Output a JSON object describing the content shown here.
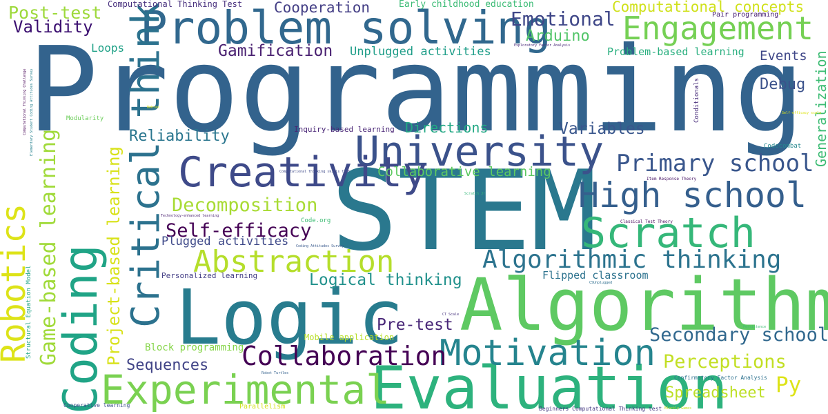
{
  "words": [
    {
      "text": "Programming",
      "color": "#33638d"
    },
    {
      "text": "STEM",
      "color": "#2a788e"
    },
    {
      "text": "Algorithm",
      "color": "#5ec962"
    },
    {
      "text": "Logic",
      "color": "#287c8e"
    },
    {
      "text": "Evaluation",
      "color": "#2db27d"
    },
    {
      "text": "Problem solving",
      "color": "#31688e"
    },
    {
      "text": "University",
      "color": "#3b528b"
    },
    {
      "text": "Creativity",
      "color": "#3e4a89"
    },
    {
      "text": "Critical thinking",
      "color": "#2c728e"
    },
    {
      "text": "Coding",
      "color": "#20a486"
    },
    {
      "text": "Robotics",
      "color": "#dde318"
    },
    {
      "text": "Scratch",
      "color": "#35b779"
    },
    {
      "text": "High school",
      "color": "#355f8d"
    },
    {
      "text": "Experimental",
      "color": "#7ad151"
    },
    {
      "text": "Motivation",
      "color": "#25848e"
    },
    {
      "text": "Engagement",
      "color": "#75d054"
    },
    {
      "text": "Collaboration",
      "color": "#440154"
    },
    {
      "text": "Abstraction",
      "color": "#b5de2b"
    },
    {
      "text": "Game-based learning",
      "color": "#a0da39"
    },
    {
      "text": "Primary school",
      "color": "#39568c"
    },
    {
      "text": "Algorithmic thinking",
      "color": "#2c738e"
    },
    {
      "text": "Project-based learning",
      "color": "#d8e219"
    },
    {
      "text": "Decomposition",
      "color": "#a8db34"
    },
    {
      "text": "Secondary school",
      "color": "#31688e"
    },
    {
      "text": "Emotional",
      "color": "#3f4788"
    },
    {
      "text": "Self-efficacy",
      "color": "#440154"
    },
    {
      "text": "Perceptions",
      "color": "#c2df23"
    },
    {
      "text": "Logical thinking",
      "color": "#21918c"
    },
    {
      "text": "Computational concepts",
      "color": "#d0e11c"
    },
    {
      "text": "Post-test",
      "color": "#9dd93b"
    },
    {
      "text": "Validity",
      "color": "#3b0f70"
    },
    {
      "text": "Pre-test",
      "color": "#482677"
    },
    {
      "text": "Spreadsheet",
      "color": "#bddf26"
    },
    {
      "text": "Variables",
      "color": "#39568c"
    },
    {
      "text": "Reliability",
      "color": "#2a768e"
    },
    {
      "text": "Gamification",
      "color": "#481f70"
    },
    {
      "text": "Cooperation",
      "color": "#433e85"
    },
    {
      "text": "Arduino",
      "color": "#52c569"
    },
    {
      "text": "Generalization",
      "color": "#3dbc74"
    },
    {
      "text": "Sequences",
      "color": "#414487"
    },
    {
      "text": "Collaborative learning",
      "color": "#5ec962"
    },
    {
      "text": "Directions",
      "color": "#22a884"
    },
    {
      "text": "Plugged activities",
      "color": "#3e4989"
    },
    {
      "text": "Unplugged activities",
      "color": "#1f9e89"
    },
    {
      "text": "Debug",
      "color": "#3b528b"
    },
    {
      "text": "Events",
      "color": "#3f4788"
    },
    {
      "text": "Loops",
      "color": "#1fa187"
    },
    {
      "text": "Py",
      "color": "#dde318"
    },
    {
      "text": "Problem-based learning",
      "color": "#29af7f"
    },
    {
      "text": "Flipped classroom",
      "color": "#2c728e"
    },
    {
      "text": "Block programming",
      "color": "#86d549"
    },
    {
      "text": "Early childhood education",
      "color": "#3bbb75"
    },
    {
      "text": "Computational Thinking Test",
      "color": "#472f7d"
    },
    {
      "text": "Inquiry-based learning",
      "color": "#482475"
    },
    {
      "text": "Mobile application",
      "color": "#b8de29"
    },
    {
      "text": "Personalized learning",
      "color": "#433e85"
    },
    {
      "text": "Structural Equation Model",
      "color": "#20a486"
    },
    {
      "text": "Conditionals",
      "color": "#472c7a"
    },
    {
      "text": "Pair programming",
      "color": "#482173"
    },
    {
      "text": "Codecombat",
      "color": "#24878e"
    },
    {
      "text": "Parallelism",
      "color": "#d2e21b"
    },
    {
      "text": "Cooperative learning",
      "color": "#3b528b"
    },
    {
      "text": "Beginners Computational Thinking test",
      "color": "#443983"
    },
    {
      "text": "Confirmatory Factor Analysis",
      "color": "#2d718e"
    },
    {
      "text": "Modularity",
      "color": "#6ccd5a"
    },
    {
      "text": "Code.org",
      "color": "#3dbc74"
    },
    {
      "text": "Item Response Theory",
      "color": "#471365"
    },
    {
      "text": "Classical Test Theory",
      "color": "#46075a"
    },
    {
      "text": "Technology-enhanced learning",
      "color": "#481f70"
    },
    {
      "text": "Computational thinking skills test",
      "color": "#3e4989"
    },
    {
      "text": "Computational Thinking Challenge",
      "color": "#440154"
    },
    {
      "text": "Elementary Student Coding Attitudes Survey",
      "color": "#26818e"
    },
    {
      "text": "Exploratory Factor Analysis",
      "color": "#482878"
    },
    {
      "text": "Coding Attitudes Survey",
      "color": "#38598c"
    },
    {
      "text": "Self-efficacy scale",
      "color": "#dde318"
    },
    {
      "text": "Bebras",
      "color": "#e5e419"
    },
    {
      "text": "Scratch Jr",
      "color": "#35b779"
    },
    {
      "text": "CT Scale",
      "color": "#46327e"
    },
    {
      "text": "CSUnplugged",
      "color": "#2e6e8e"
    },
    {
      "text": "Robot Turtles",
      "color": "#34618d"
    },
    {
      "text": "Blockly Games",
      "color": "#c8e020"
    },
    {
      "text": "Persistence",
      "color": "#3dbc74"
    }
  ]
}
